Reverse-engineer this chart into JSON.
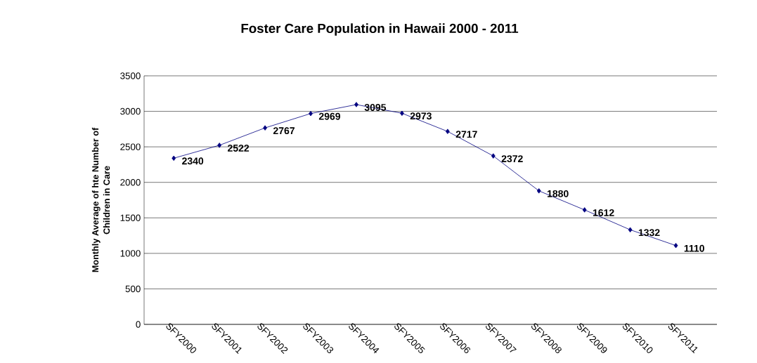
{
  "chart_data": {
    "type": "line",
    "title": "Foster Care Population in Hawaii 2000 - 2011",
    "ylabel": "Monthly Average of hte Number of\nChildren in Care",
    "categories": [
      "SFY2000",
      "SFY2001",
      "SFY2002",
      "SFY2003",
      "SFY2004",
      "SFY2005",
      "SFY2006",
      "SFY2007",
      "SFY2008",
      "SFY2009",
      "SFY2010",
      "SFY2011"
    ],
    "values": [
      2340,
      2522,
      2767,
      2969,
      3095,
      2973,
      2717,
      2372,
      1880,
      1612,
      1332,
      1110
    ],
    "color": "#000080",
    "marker": "diamond",
    "line_style": "solid",
    "data_labels": true,
    "grid": "y",
    "ylim": [
      0,
      3500
    ],
    "yticks": [
      0,
      500,
      1000,
      1500,
      2000,
      2500,
      3000,
      3500
    ]
  }
}
